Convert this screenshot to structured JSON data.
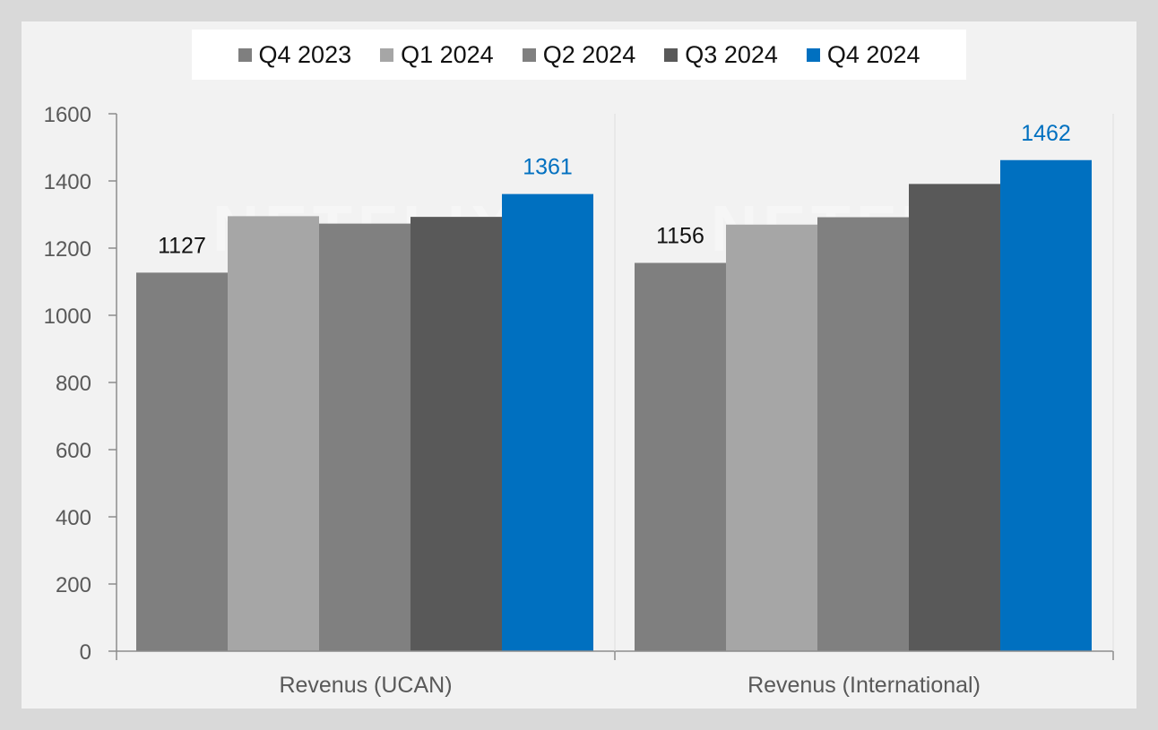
{
  "chart_data": {
    "type": "bar",
    "categories": [
      "Revenus (UCAN)",
      "Revenus (International)"
    ],
    "series": [
      {
        "name": "Q4 2023",
        "values": [
          1127,
          1156
        ],
        "color": "#7f7f7f"
      },
      {
        "name": "Q1 2024",
        "values": [
          1295,
          1270
        ],
        "color": "#a6a6a6"
      },
      {
        "name": "Q2 2024",
        "values": [
          1273,
          1292
        ],
        "color": "#808080"
      },
      {
        "name": "Q3 2024",
        "values": [
          1293,
          1391
        ],
        "color": "#595959"
      },
      {
        "name": "Q4 2024",
        "values": [
          1361,
          1462
        ],
        "color": "#0070c0"
      }
    ],
    "data_labels": [
      {
        "series": "Q4 2023",
        "category": "Revenus (UCAN)",
        "text": "1127",
        "color": "#111111"
      },
      {
        "series": "Q4 2024",
        "category": "Revenus (UCAN)",
        "text": "1361",
        "color": "#0070c0"
      },
      {
        "series": "Q4 2023",
        "category": "Revenus (International)",
        "text": "1156",
        "color": "#111111"
      },
      {
        "series": "Q4 2024",
        "category": "Revenus (International)",
        "text": "1462",
        "color": "#0070c0"
      }
    ],
    "yticks": [
      "0",
      "200",
      "400",
      "600",
      "800",
      "1000",
      "1200",
      "1400",
      "1600"
    ],
    "ylim": [
      0,
      1600
    ],
    "legend_position": "top",
    "grid": false,
    "watermark": "NETFLIX"
  }
}
